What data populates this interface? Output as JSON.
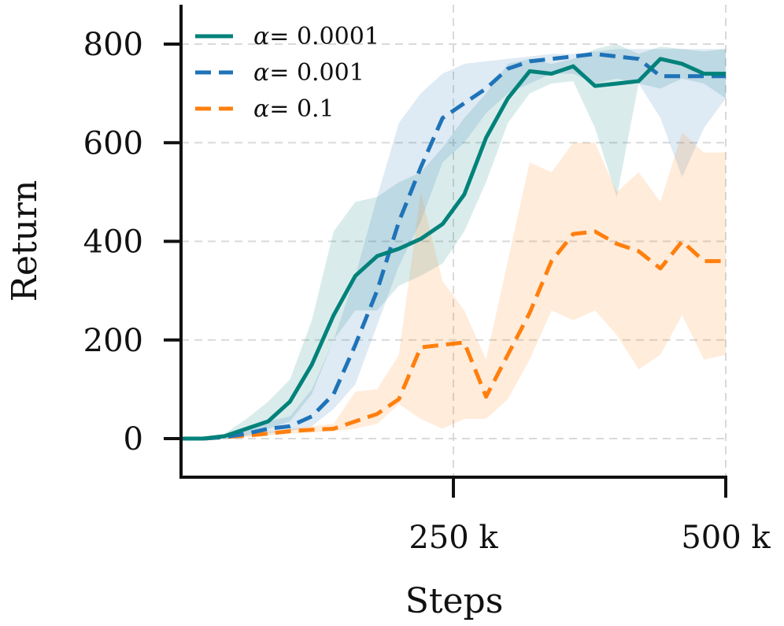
{
  "chart_data": {
    "type": "line",
    "title": "",
    "xlabel": "Steps",
    "ylabel": "Return",
    "xlim": [
      0,
      500000
    ],
    "ylim": [
      -80,
      880
    ],
    "grid": true,
    "legend_position": "top-left",
    "x_ticks": [
      {
        "value": 250000,
        "label": "250 k"
      },
      {
        "value": 500000,
        "label": "500 k"
      }
    ],
    "y_ticks": [
      {
        "value": 0,
        "label": "0"
      },
      {
        "value": 200,
        "label": "200"
      },
      {
        "value": 400,
        "label": "400"
      },
      {
        "value": 600,
        "label": "600"
      },
      {
        "value": 800,
        "label": "800"
      }
    ],
    "x": [
      0,
      20000,
      40000,
      60000,
      80000,
      100000,
      120000,
      140000,
      160000,
      180000,
      200000,
      220000,
      240000,
      260000,
      280000,
      300000,
      320000,
      340000,
      360000,
      380000,
      400000,
      420000,
      440000,
      460000,
      480000,
      500000
    ],
    "series": [
      {
        "name": "α = 0.0001",
        "legend_symbol": "α",
        "legend_value": "= 0.0001",
        "color": "#00827a",
        "dash": "solid",
        "values": [
          0,
          0,
          5,
          20,
          35,
          75,
          150,
          250,
          330,
          370,
          385,
          405,
          435,
          495,
          610,
          690,
          745,
          740,
          755,
          715,
          720,
          725,
          770,
          760,
          740,
          740
        ],
        "lower": [
          0,
          0,
          2,
          8,
          20,
          35,
          90,
          200,
          260,
          260,
          310,
          330,
          355,
          420,
          520,
          640,
          700,
          720,
          725,
          630,
          490,
          720,
          710,
          730,
          720,
          690
        ],
        "upper": [
          0,
          2,
          10,
          40,
          75,
          120,
          240,
          420,
          480,
          490,
          520,
          540,
          590,
          650,
          700,
          760,
          770,
          760,
          770,
          790,
          800,
          780,
          795,
          790,
          785,
          790
        ]
      },
      {
        "name": "α = 0.001",
        "legend_symbol": "α",
        "legend_value": "= 0.001",
        "color": "#1f73b8",
        "dash": "dashed",
        "values": [
          0,
          0,
          3,
          10,
          20,
          25,
          45,
          90,
          190,
          300,
          440,
          550,
          650,
          680,
          710,
          750,
          765,
          770,
          775,
          780,
          775,
          770,
          735,
          735,
          735,
          735
        ],
        "lower": [
          0,
          0,
          0,
          5,
          10,
          15,
          25,
          60,
          110,
          230,
          350,
          440,
          560,
          600,
          660,
          700,
          720,
          740,
          740,
          720,
          730,
          720,
          650,
          530,
          630,
          690
        ],
        "upper": [
          0,
          2,
          8,
          20,
          35,
          45,
          100,
          200,
          330,
          490,
          640,
          700,
          740,
          760,
          765,
          770,
          775,
          780,
          780,
          785,
          790,
          790,
          790,
          790,
          790,
          790
        ]
      },
      {
        "name": "α = 0.1",
        "legend_symbol": "α",
        "legend_value": "= 0.1",
        "color": "#ff7f0e",
        "dash": "dashed",
        "values": [
          0,
          0,
          3,
          6,
          10,
          15,
          18,
          20,
          35,
          50,
          80,
          185,
          190,
          195,
          85,
          170,
          255,
          360,
          415,
          420,
          395,
          380,
          345,
          400,
          360,
          360
        ],
        "lower": [
          0,
          0,
          1,
          3,
          6,
          10,
          12,
          15,
          20,
          30,
          70,
          40,
          20,
          40,
          40,
          80,
          160,
          260,
          240,
          260,
          210,
          140,
          170,
          250,
          160,
          170
        ],
        "upper": [
          0,
          1,
          5,
          10,
          15,
          20,
          25,
          30,
          95,
          100,
          170,
          500,
          320,
          260,
          160,
          360,
          560,
          540,
          600,
          600,
          500,
          540,
          480,
          620,
          580,
          580
        ]
      }
    ]
  }
}
